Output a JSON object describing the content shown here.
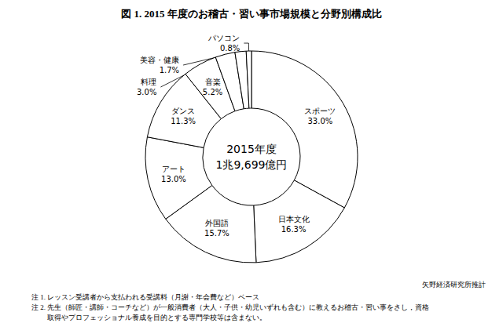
{
  "chart_data": {
    "type": "pie",
    "title": "図 1. 2015 年度のお稽古・習い事市場規模と分野別構成比",
    "categories": [
      "スポーツ",
      "日本文化",
      "外国語",
      "アート",
      "ダンス",
      "音楽",
      "料理",
      "美容・健康",
      "パソコン"
    ],
    "values": [
      33.0,
      16.3,
      15.7,
      13.0,
      11.3,
      5.2,
      3.0,
      1.7,
      0.8
    ],
    "value_labels": [
      "33.0%",
      "16.3%",
      "15.7%",
      "13.0%",
      "11.3%",
      "5.2%",
      "3.0%",
      "1.7%",
      "0.8%"
    ],
    "colors": [
      "#ffffff",
      "#ffffff",
      "#ffffff",
      "#ffffff",
      "#ffffff",
      "#ffffff",
      "#ffffff",
      "#ffffff",
      "#ffffff"
    ],
    "data_labels": true,
    "center_label": [
      "2015年度",
      "1兆9,699億円"
    ],
    "source": "矢野経済研究所推計",
    "notes": [
      "注 1. レッスン受講者から支払われる受講料（月謝・年会費など）ベース",
      "注 2. 先生（師匠・講師・コーチなど）が一般消費者（大人・子供・幼児いずれも含む）に教えるお稽古・習い事をさし，資格",
      "取得やプロフェッショナル養成を目的とする専門学校等は含まない。"
    ]
  }
}
